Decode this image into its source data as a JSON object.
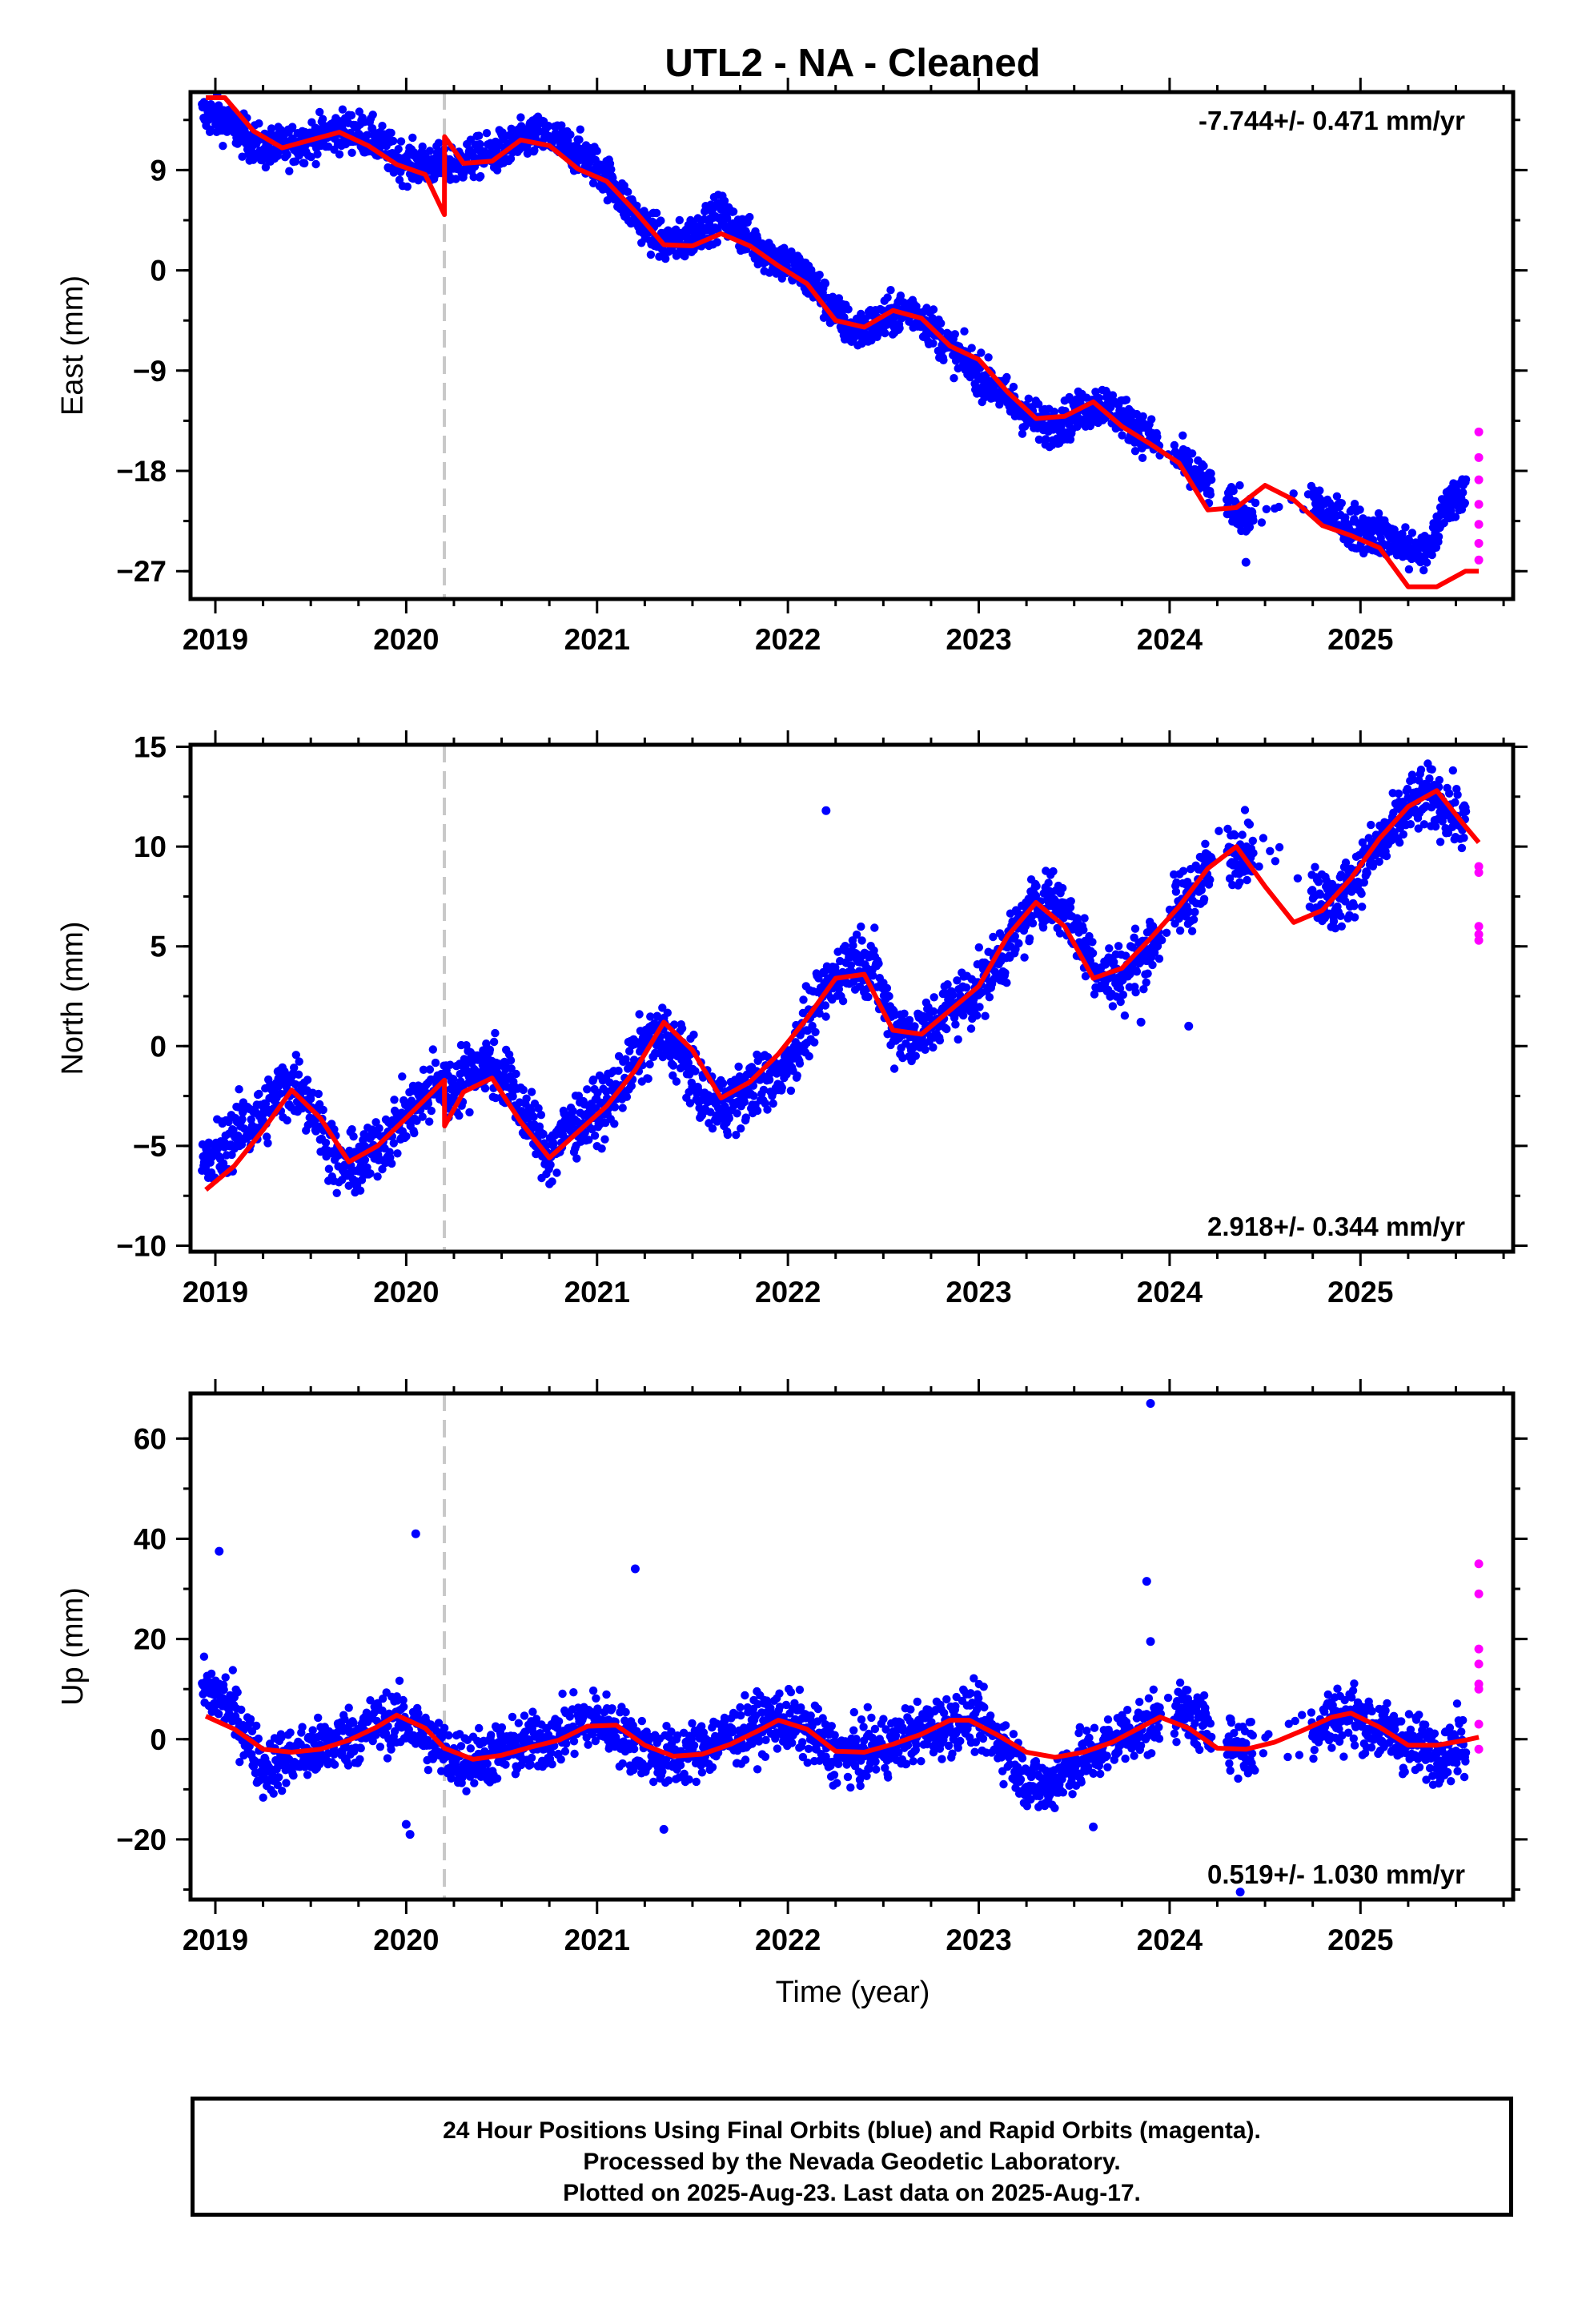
{
  "title": "UTL2  - NA - Cleaned",
  "xlabel": "Time (year)",
  "colors": {
    "final": "#0000ff",
    "rapid": "#ff00ff",
    "model": "#ff0000",
    "break": "#c8c8c8",
    "frame": "#000000"
  },
  "footer": {
    "line1": "24 Hour Positions Using Final Orbits (blue) and Rapid Orbits (magenta).",
    "line2": "Processed by the Nevada Geodetic Laboratory.",
    "line3": "Plotted on 2025-Aug-23. Last data on 2025-Aug-17."
  },
  "chart_data": [
    {
      "type": "scatter",
      "component": "east",
      "ylabel": "East (mm)",
      "rate_text": "-7.744+/- 0.471 mm/yr",
      "rate_position": "top-right",
      "xlim": [
        2018.87,
        2025.8
      ],
      "ylim": [
        -29.5,
        16
      ],
      "xticks": [
        2019,
        2020,
        2021,
        2022,
        2023,
        2024,
        2025
      ],
      "yticks": [
        9,
        0,
        -9,
        -18,
        -27
      ],
      "ytick_labels": [
        "9",
        "0",
        "−9",
        "−18",
        "−27"
      ],
      "equipment_break": 2020.2,
      "model_fit": {
        "x": [
          2018.95,
          2019.05,
          2019.2,
          2019.35,
          2019.5,
          2019.65,
          2019.8,
          2019.95,
          2020.1,
          2020.2,
          2020.201,
          2020.3,
          2020.45,
          2020.6,
          2020.75,
          2020.9,
          2021.05,
          2021.2,
          2021.35,
          2021.5,
          2021.65,
          2021.8,
          2021.95,
          2022.1,
          2022.25,
          2022.4,
          2022.55,
          2022.7,
          2022.85,
          2023.0,
          2023.15,
          2023.3,
          2023.45,
          2023.6,
          2023.75,
          2023.9,
          2024.05,
          2024.2,
          2024.35,
          2024.5,
          2024.65,
          2024.8,
          2024.95,
          2025.1,
          2025.25,
          2025.4,
          2025.55,
          2025.62
        ],
        "y": [
          15.5,
          15.5,
          12.5,
          11.0,
          11.7,
          12.4,
          11.2,
          9.5,
          8.6,
          5.0,
          12.0,
          9.6,
          9.8,
          11.7,
          11.2,
          9.1,
          8.0,
          5.3,
          2.3,
          2.2,
          3.3,
          2.2,
          0.4,
          -1.2,
          -4.5,
          -5.1,
          -3.6,
          -4.3,
          -6.8,
          -8.0,
          -10.9,
          -13.3,
          -13.1,
          -11.8,
          -14.0,
          -15.6,
          -17.3,
          -21.5,
          -21.3,
          -19.3,
          -20.6,
          -22.9,
          -23.8,
          -24.9,
          -28.4,
          -28.4,
          -27.0,
          -27.0
        ]
      },
      "final_samples": {
        "x": [
          2018.95,
          2019.05,
          2019.15,
          2019.25,
          2019.35,
          2019.45,
          2019.55,
          2019.65,
          2019.75,
          2019.85,
          2019.95,
          2020.05,
          2020.15,
          2020.25,
          2020.35,
          2020.45,
          2020.55,
          2020.65,
          2020.75,
          2020.85,
          2020.95,
          2021.05,
          2021.15,
          2021.25,
          2021.35,
          2021.45,
          2021.55,
          2021.65,
          2021.75,
          2021.85,
          2021.95,
          2022.05,
          2022.15,
          2022.25,
          2022.35,
          2022.45,
          2022.55,
          2022.65,
          2022.75,
          2022.85,
          2022.95,
          2023.05,
          2023.15,
          2023.25,
          2023.35,
          2023.45,
          2023.55,
          2023.65,
          2023.75,
          2023.85,
          2024.05,
          2024.15,
          2024.25,
          2024.4,
          2024.75,
          2024.85,
          2024.95,
          2025.05,
          2025.15,
          2025.25,
          2025.35,
          2025.45,
          2025.55
        ],
        "y": [
          14,
          13.5,
          12,
          11,
          11,
          11.5,
          12,
          12.5,
          12.5,
          11.5,
          10,
          9.5,
          9.5,
          9.5,
          10,
          10.5,
          11,
          12,
          12,
          11,
          10,
          8.5,
          6,
          4,
          2.5,
          2.5,
          4,
          5,
          3.5,
          2,
          1,
          0,
          -1.5,
          -4,
          -5.5,
          -5,
          -4,
          -3.5,
          -5,
          -7,
          -8.5,
          -10,
          -11.5,
          -13,
          -14,
          -13.5,
          -12.5,
          -12,
          -13,
          -14.5,
          -17,
          -18.5,
          -20.5,
          -22,
          -20.5,
          -22,
          -23,
          -23.5,
          -24,
          -25,
          -25.5,
          -21,
          -19.5
        ]
      },
      "rapid_samples": {
        "x": [
          2025.62,
          2025.62,
          2025.62,
          2025.62,
          2025.62,
          2025.62,
          2025.62
        ],
        "y": [
          -14.5,
          -16.8,
          -18.8,
          -21,
          -22.8,
          -24.5,
          -26
        ]
      },
      "outliers": {
        "x": [
          2024.4,
          2025.1
        ],
        "y": [
          -26.2,
          -23.5
        ]
      }
    },
    {
      "type": "scatter",
      "component": "north",
      "ylabel": "North (mm)",
      "rate_text": "2.918+/- 0.344 mm/yr",
      "rate_position": "bottom-right",
      "xlim": [
        2018.87,
        2025.8
      ],
      "ylim": [
        -10.3,
        15.1
      ],
      "xticks": [
        2019,
        2020,
        2021,
        2022,
        2023,
        2024,
        2025
      ],
      "yticks": [
        15,
        10,
        5,
        0,
        -5,
        -10
      ],
      "ytick_labels": [
        "15",
        "10",
        "5",
        "0",
        "−5",
        "−10"
      ],
      "equipment_break": 2020.2,
      "model_fit": {
        "x": [
          2018.95,
          2019.1,
          2019.25,
          2019.4,
          2019.55,
          2019.7,
          2019.85,
          2020.0,
          2020.2,
          2020.201,
          2020.3,
          2020.45,
          2020.6,
          2020.75,
          2020.9,
          2021.05,
          2021.2,
          2021.35,
          2021.5,
          2021.65,
          2021.8,
          2021.95,
          2022.1,
          2022.25,
          2022.4,
          2022.55,
          2022.7,
          2022.85,
          2023.0,
          2023.15,
          2023.3,
          2023.45,
          2023.6,
          2023.75,
          2023.9,
          2024.05,
          2024.2,
          2024.35,
          2024.5,
          2024.65,
          2024.8,
          2024.95,
          2025.1,
          2025.25,
          2025.4,
          2025.55,
          2025.62
        ],
        "y": [
          -7.2,
          -6.0,
          -4.2,
          -2.2,
          -3.6,
          -5.8,
          -5.0,
          -3.6,
          -1.7,
          -4.0,
          -2.3,
          -1.6,
          -3.8,
          -5.6,
          -4.3,
          -3.0,
          -1.2,
          1.2,
          -0.2,
          -2.6,
          -1.8,
          -0.4,
          1.4,
          3.4,
          3.6,
          0.8,
          0.6,
          1.8,
          3.0,
          5.5,
          7.2,
          6.0,
          3.4,
          3.9,
          5.4,
          7.0,
          8.9,
          10.0,
          8.0,
          6.2,
          6.8,
          8.4,
          10.4,
          12.0,
          12.8,
          11.0,
          10.2
        ]
      },
      "final_samples": {
        "x": [
          2018.95,
          2019.05,
          2019.15,
          2019.25,
          2019.35,
          2019.45,
          2019.55,
          2019.65,
          2019.75,
          2019.85,
          2019.95,
          2020.05,
          2020.15,
          2020.25,
          2020.35,
          2020.45,
          2020.55,
          2020.65,
          2020.75,
          2020.85,
          2020.95,
          2021.05,
          2021.15,
          2021.25,
          2021.35,
          2021.45,
          2021.55,
          2021.65,
          2021.75,
          2021.85,
          2021.95,
          2022.05,
          2022.15,
          2022.25,
          2022.35,
          2022.45,
          2022.55,
          2022.65,
          2022.75,
          2022.85,
          2022.95,
          2023.05,
          2023.15,
          2023.25,
          2023.35,
          2023.45,
          2023.55,
          2023.65,
          2023.75,
          2023.85,
          2024.05,
          2024.15,
          2024.25,
          2024.4,
          2024.75,
          2024.85,
          2024.95,
          2025.05,
          2025.15,
          2025.25,
          2025.35,
          2025.45,
          2025.55
        ],
        "y": [
          -6,
          -5,
          -4,
          -3.5,
          -2,
          -2,
          -4,
          -6,
          -6,
          -5,
          -4,
          -3,
          -2,
          -2,
          -1,
          -1,
          -2,
          -4,
          -5.5,
          -4,
          -3.5,
          -3,
          -1.5,
          0,
          0.5,
          -0.5,
          -2.5,
          -3,
          -2.5,
          -2,
          -1.5,
          0,
          2,
          3.5,
          4.5,
          4,
          1,
          0.5,
          1,
          2,
          2.5,
          3.5,
          5,
          6.5,
          7.5,
          7,
          5,
          3.5,
          3.5,
          4.5,
          7,
          8,
          9.5,
          10,
          8,
          7,
          8,
          9.5,
          10.5,
          12,
          12.5,
          12,
          11
        ]
      },
      "rapid_samples": {
        "x": [
          2025.62,
          2025.62,
          2025.62,
          2025.62,
          2025.62
        ],
        "y": [
          9.0,
          8.7,
          6.0,
          5.6,
          5.3
        ]
      },
      "outliers": {
        "x": [
          2022.2,
          2023.85,
          2024.1
        ],
        "y": [
          11.8,
          1.2,
          1.0
        ]
      }
    },
    {
      "type": "scatter",
      "component": "up",
      "ylabel": "Up (mm)",
      "rate_text": "0.519+/- 1.030 mm/yr",
      "rate_position": "bottom-right",
      "xlim": [
        2018.87,
        2025.8
      ],
      "ylim": [
        -32,
        69
      ],
      "xticks": [
        2019,
        2020,
        2021,
        2022,
        2023,
        2024,
        2025
      ],
      "yticks": [
        60,
        40,
        20,
        0,
        -20
      ],
      "ytick_labels": [
        "60",
        "40",
        "20",
        "0",
        "−20"
      ],
      "equipment_break": 2020.2,
      "model_fit": {
        "x": [
          2018.95,
          2019.1,
          2019.25,
          2019.4,
          2019.55,
          2019.7,
          2019.85,
          2019.95,
          2020.1,
          2020.2,
          2020.35,
          2020.5,
          2020.65,
          2020.8,
          2020.95,
          2021.1,
          2021.25,
          2021.4,
          2021.55,
          2021.7,
          2021.85,
          2021.95,
          2022.1,
          2022.25,
          2022.4,
          2022.55,
          2022.7,
          2022.85,
          2022.95,
          2023.1,
          2023.25,
          2023.4,
          2023.55,
          2023.7,
          2023.85,
          2023.95,
          2024.1,
          2024.25,
          2024.4,
          2024.55,
          2024.7,
          2024.85,
          2024.95,
          2025.1,
          2025.25,
          2025.4,
          2025.55,
          2025.62
        ],
        "y": [
          4.6,
          2.0,
          -2.0,
          -2.6,
          -2.0,
          -0.2,
          2.5,
          4.8,
          2.2,
          -1.8,
          -4.0,
          -3.2,
          -1.6,
          -0.2,
          2.6,
          2.8,
          -1.2,
          -3.4,
          -3.0,
          -1.0,
          1.8,
          3.8,
          2.0,
          -2.4,
          -2.6,
          -1.0,
          1.0,
          3.8,
          3.8,
          0.8,
          -2.6,
          -3.6,
          -2.6,
          -0.6,
          2.4,
          4.4,
          2.2,
          -1.8,
          -2.0,
          -0.6,
          1.8,
          4.4,
          5.2,
          2.4,
          -1.2,
          -1.2,
          -0.2,
          0.4
        ]
      },
      "final_samples": {
        "x": [
          2018.95,
          2019.05,
          2019.15,
          2019.25,
          2019.35,
          2019.45,
          2019.55,
          2019.65,
          2019.75,
          2019.85,
          2019.95,
          2020.05,
          2020.15,
          2020.25,
          2020.35,
          2020.45,
          2020.55,
          2020.65,
          2020.75,
          2020.85,
          2020.95,
          2021.05,
          2021.15,
          2021.25,
          2021.35,
          2021.45,
          2021.55,
          2021.65,
          2021.75,
          2021.85,
          2021.95,
          2022.05,
          2022.15,
          2022.25,
          2022.35,
          2022.45,
          2022.55,
          2022.65,
          2022.75,
          2022.85,
          2022.95,
          2023.05,
          2023.15,
          2023.25,
          2023.35,
          2023.45,
          2023.55,
          2023.65,
          2023.75,
          2023.85,
          2024.05,
          2024.15,
          2024.25,
          2024.4,
          2024.75,
          2024.85,
          2024.95,
          2025.05,
          2025.15,
          2025.25,
          2025.35,
          2025.45,
          2025.55
        ],
        "y": [
          10,
          8,
          2,
          -6,
          -4,
          -3,
          -2,
          0,
          1,
          3,
          4,
          2,
          -1,
          -4,
          -4,
          -3,
          -2,
          -1,
          0,
          2,
          4,
          3,
          0,
          -2,
          -4,
          -3,
          -2,
          0,
          1,
          3,
          4,
          3,
          0,
          -3,
          -3,
          -2,
          -1,
          1,
          2,
          3,
          5,
          2,
          -2,
          -8,
          -10,
          -6,
          -4,
          -2,
          1,
          2,
          6,
          4,
          0,
          -2,
          2,
          4,
          5,
          3,
          1,
          -1,
          -2,
          -2,
          -1
        ]
      },
      "rapid_samples": {
        "x": [
          2025.62,
          2025.62,
          2025.62,
          2025.62,
          2025.62,
          2025.62,
          2025.62,
          2025.62
        ],
        "y": [
          35,
          29,
          18,
          15,
          11,
          10,
          3,
          -2
        ]
      },
      "outliers": {
        "x": [
          2019.02,
          2020.05,
          2020.0,
          2020.02,
          2021.2,
          2021.35,
          2023.9,
          2023.88,
          2023.9,
          2024.37,
          2023.6
        ],
        "y": [
          37.5,
          41,
          -17,
          -19,
          34,
          -18,
          67,
          31.5,
          19.5,
          -30.5,
          -17.5
        ]
      }
    }
  ]
}
